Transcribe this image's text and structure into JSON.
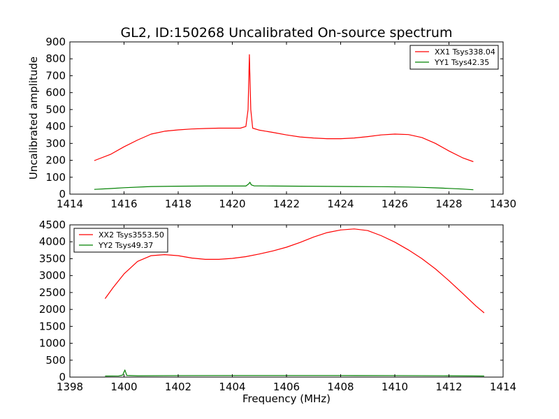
{
  "figure": {
    "title": "GL2, ID:150268 Uncalibrated On-source spectrum"
  },
  "chart_data": [
    {
      "type": "line",
      "title": "GL2, ID:150268 Uncalibrated On-source spectrum",
      "xlabel": "",
      "ylabel": "Uncalibrated amplitude",
      "xlim": [
        1414,
        1430
      ],
      "ylim": [
        0,
        900
      ],
      "xticks": [
        1414,
        1416,
        1418,
        1420,
        1422,
        1424,
        1426,
        1428,
        1430
      ],
      "yticks": [
        0,
        100,
        200,
        300,
        400,
        500,
        600,
        700,
        800,
        900
      ],
      "legend_position": "top-right",
      "series": [
        {
          "name": "XX1 Tsys338.04",
          "color": "#ff0000",
          "x": [
            1414.9,
            1415.5,
            1416.0,
            1416.5,
            1417.0,
            1417.5,
            1418.0,
            1418.5,
            1419.0,
            1419.5,
            1420.0,
            1420.3,
            1420.5,
            1420.58,
            1420.63,
            1420.68,
            1420.75,
            1421.0,
            1421.5,
            1422.0,
            1422.5,
            1423.0,
            1423.5,
            1424.0,
            1424.5,
            1425.0,
            1425.5,
            1426.0,
            1426.5,
            1427.0,
            1427.5,
            1428.0,
            1428.5,
            1428.9
          ],
          "y": [
            198,
            235,
            280,
            320,
            355,
            372,
            380,
            385,
            388,
            390,
            390,
            390,
            400,
            500,
            825,
            500,
            390,
            378,
            365,
            350,
            338,
            332,
            328,
            328,
            332,
            340,
            350,
            355,
            352,
            335,
            300,
            255,
            215,
            192
          ]
        },
        {
          "name": "YY1 Tsys42.35",
          "color": "#008000",
          "x": [
            1414.9,
            1415.5,
            1416.0,
            1417.0,
            1418.0,
            1419.0,
            1420.0,
            1420.5,
            1420.6,
            1420.65,
            1420.7,
            1420.8,
            1421.5,
            1422.5,
            1423.5,
            1424.5,
            1425.5,
            1426.5,
            1427.0,
            1427.5,
            1428.0,
            1428.5,
            1428.9
          ],
          "y": [
            28,
            33,
            38,
            45,
            47,
            48,
            48,
            48,
            60,
            70,
            55,
            49,
            48,
            47,
            46,
            45,
            44,
            42,
            40,
            37,
            34,
            30,
            26
          ]
        }
      ]
    },
    {
      "type": "line",
      "title": "",
      "xlabel": "Frequency (MHz)",
      "ylabel": "",
      "xlim": [
        1398,
        1414
      ],
      "ylim": [
        0,
        4500
      ],
      "xticks": [
        1398,
        1400,
        1402,
        1404,
        1406,
        1408,
        1410,
        1412,
        1414
      ],
      "yticks": [
        0,
        500,
        1000,
        1500,
        2000,
        2500,
        3000,
        3500,
        4000,
        4500
      ],
      "legend_position": "top-left",
      "series": [
        {
          "name": "XX2 Tsys3553.50",
          "color": "#ff0000",
          "x": [
            1399.3,
            1399.6,
            1400.0,
            1400.5,
            1401.0,
            1401.5,
            1402.0,
            1402.5,
            1403.0,
            1403.5,
            1404.0,
            1404.5,
            1405.0,
            1405.5,
            1406.0,
            1406.5,
            1407.0,
            1407.5,
            1408.0,
            1408.5,
            1409.0,
            1409.5,
            1410.0,
            1410.5,
            1411.0,
            1411.5,
            1412.0,
            1412.5,
            1413.0,
            1413.3
          ],
          "y": [
            2320,
            2650,
            3050,
            3420,
            3590,
            3620,
            3590,
            3520,
            3480,
            3480,
            3510,
            3560,
            3640,
            3730,
            3840,
            3980,
            4140,
            4270,
            4350,
            4380,
            4330,
            4180,
            3990,
            3760,
            3500,
            3200,
            2850,
            2480,
            2100,
            1900
          ]
        },
        {
          "name": "YY2 Tsys49.37",
          "color": "#008000",
          "x": [
            1399.3,
            1399.8,
            1399.95,
            1400.03,
            1400.1,
            1400.5,
            1402.0,
            1404.0,
            1406.0,
            1408.0,
            1410.0,
            1412.0,
            1413.3
          ],
          "y": [
            30,
            35,
            60,
            210,
            50,
            40,
            45,
            48,
            48,
            47,
            45,
            40,
            30
          ]
        }
      ]
    }
  ]
}
